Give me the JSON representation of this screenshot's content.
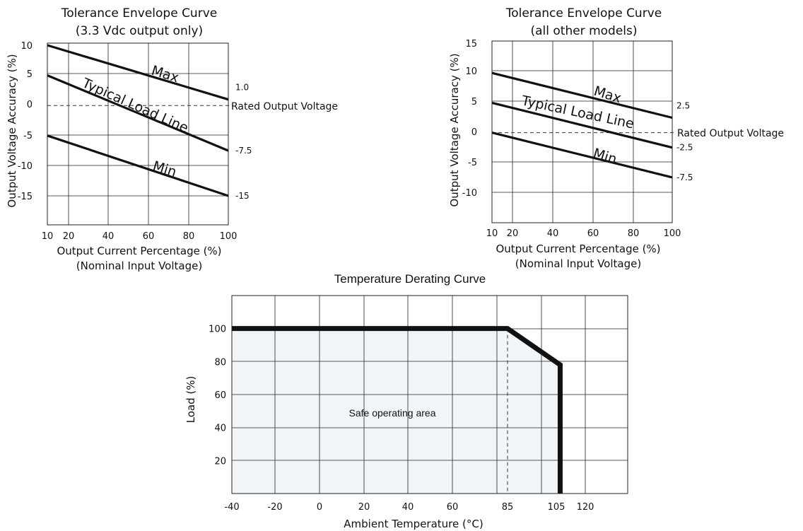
{
  "chart_data": [
    {
      "type": "line",
      "title": "Tolerance Envelope Curve",
      "subtitle": "(3.3 Vdc output only)",
      "xlabel": "Output Current Percentage (%)",
      "xlabel2": "(Nominal Input Voltage)",
      "ylabel": "Output Voltage Accuracy (%)",
      "xlim": [
        10,
        100
      ],
      "ylim": [
        -20,
        10
      ],
      "xticks": [
        "10",
        "20",
        "40",
        "60",
        "80",
        "100"
      ],
      "yticks": [
        "10",
        "5",
        "0",
        "-5",
        "-10",
        "-15"
      ],
      "grid": true,
      "series": [
        {
          "name": "Max",
          "x": [
            10,
            100
          ],
          "y": [
            10,
            1.0
          ],
          "end_label": "1.0"
        },
        {
          "name": "Typical Load Line",
          "x": [
            10,
            100
          ],
          "y": [
            5,
            -7.5
          ],
          "end_label": "-7.5"
        },
        {
          "name": "Min",
          "x": [
            10,
            100
          ],
          "y": [
            -5,
            -15
          ],
          "end_label": "-15"
        }
      ],
      "reference_line": {
        "y": 0,
        "label": "Rated Output Voltage"
      }
    },
    {
      "type": "line",
      "title": "Tolerance Envelope Curve",
      "subtitle": "(all other models)",
      "xlabel": "Output Current Percentage (%)",
      "xlabel2": "(Nominal Input Voltage)",
      "ylabel": "Output Voltage Accuracy (%)",
      "xlim": [
        10,
        100
      ],
      "ylim": [
        -15,
        15
      ],
      "xticks": [
        "10",
        "20",
        "40",
        "60",
        "80",
        "100"
      ],
      "yticks": [
        "15",
        "10",
        "5",
        "0",
        "-5",
        "-10"
      ],
      "grid": true,
      "series": [
        {
          "name": "Max",
          "x": [
            10,
            100
          ],
          "y": [
            10,
            2.5
          ],
          "end_label": "2.5"
        },
        {
          "name": "Typical Load Line",
          "x": [
            10,
            100
          ],
          "y": [
            5,
            -2.5
          ],
          "end_label": "-2.5"
        },
        {
          "name": "Min",
          "x": [
            10,
            100
          ],
          "y": [
            0,
            -7.5
          ],
          "end_label": "-7.5"
        }
      ],
      "reference_line": {
        "y": 0,
        "label": "Rated Output Voltage"
      }
    },
    {
      "type": "area",
      "title": "Temperature Derating Curve",
      "xlabel": "Ambient Temperature (°C)",
      "ylabel": "Load (%)",
      "xticks": [
        "-40",
        "-20",
        "0",
        "20",
        "40",
        "60",
        "85",
        "105",
        "120"
      ],
      "yticks": [
        "100",
        "80",
        "60",
        "40",
        "20"
      ],
      "ylim": [
        0,
        120
      ],
      "grid": true,
      "series": [
        {
          "x": [
            -40,
            85,
            107,
            107
          ],
          "y": [
            100,
            100,
            78,
            0
          ]
        }
      ],
      "reference_line": {
        "x": 85
      },
      "area_label": "Safe operating area",
      "area_color": "#f1f5f8"
    }
  ]
}
